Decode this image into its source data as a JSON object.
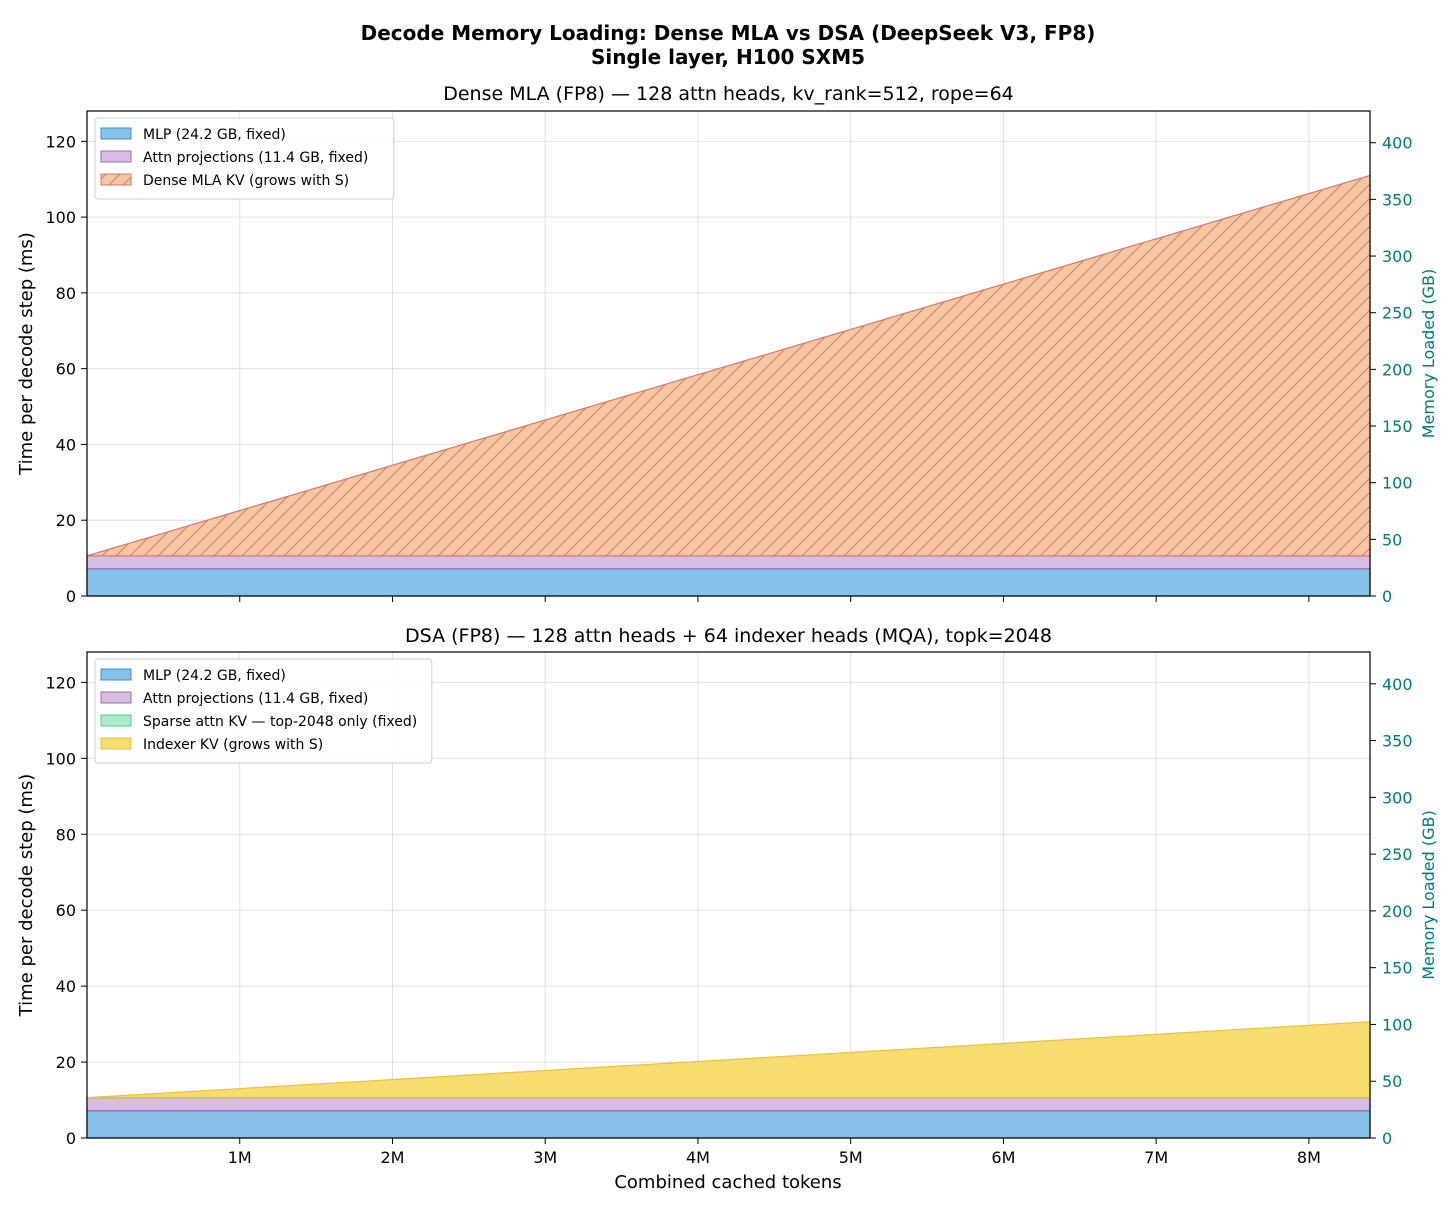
{
  "figure": {
    "title_line1": "Decode Memory Loading: Dense MLA vs DSA (DeepSeek V3, FP8)",
    "title_line2": "Single layer, H100 SXM5",
    "xlabel": "Combined cached tokens"
  },
  "colors": {
    "mlp_fill": "#85c1e9",
    "mlp_edge": "#3b8ed0",
    "attn_fill": "#d7bde2",
    "attn_edge": "#9b6bb3",
    "kv_fill": "#f5c6a2",
    "kv_edge": "#d4786a",
    "sparse_fill": "#abebc6",
    "sparse_edge": "#58c98a",
    "indexer_fill": "#f7dc6f",
    "indexer_edge": "#e6c240",
    "right_axis": "#007a7a",
    "grid": "#e0e0e0"
  },
  "chart_data": [
    {
      "type": "area",
      "title": "Dense MLA (FP8) — 128 attn heads, kv_rank=512, rope=64",
      "xlabel": "",
      "ylabel": "Time per decode step (ms)",
      "ylabel_right": "Memory Loaded (GB)",
      "xlim": [
        0,
        8400000
      ],
      "ylim": [
        0,
        128
      ],
      "ylim_right": [
        0,
        428
      ],
      "x_ticks": [
        1000000,
        2000000,
        3000000,
        4000000,
        5000000,
        6000000,
        7000000,
        8000000
      ],
      "x_tick_labels": [
        "1M",
        "2M",
        "3M",
        "4M",
        "5M",
        "6M",
        "7M",
        "8M"
      ],
      "show_x_tick_labels": false,
      "y_ticks": [
        0,
        20,
        40,
        60,
        80,
        100,
        120
      ],
      "y_tick_labels": [
        "0",
        "20",
        "40",
        "60",
        "80",
        "100",
        "120"
      ],
      "y_ticks_right": [
        0,
        50,
        100,
        150,
        200,
        250,
        300,
        350,
        400
      ],
      "y_tick_labels_right": [
        "0",
        "50",
        "100",
        "150",
        "200",
        "250",
        "300",
        "350",
        "400"
      ],
      "grid": true,
      "legend_position": "top-left",
      "x": [
        0,
        8400000
      ],
      "series": [
        {
          "name": "MLP (24.2 GB, fixed)",
          "values": [
            7.2,
            7.2
          ],
          "fill": "mlp_fill",
          "edge": "mlp_edge",
          "hatch": false
        },
        {
          "name": "Attn projections (11.4 GB, fixed)",
          "values": [
            3.4,
            3.4
          ],
          "fill": "attn_fill",
          "edge": "attn_edge",
          "hatch": false
        },
        {
          "name": "Dense MLA KV (grows with S)",
          "values": [
            0,
            100.4
          ],
          "fill": "kv_fill",
          "edge": "kv_edge",
          "hatch": true
        }
      ]
    },
    {
      "type": "area",
      "title": "DSA (FP8) — 128 attn heads + 64 indexer heads (MQA), topk=2048",
      "xlabel": "Combined cached tokens",
      "ylabel": "Time per decode step (ms)",
      "ylabel_right": "Memory Loaded (GB)",
      "xlim": [
        0,
        8400000
      ],
      "ylim": [
        0,
        128
      ],
      "ylim_right": [
        0,
        428
      ],
      "x_ticks": [
        1000000,
        2000000,
        3000000,
        4000000,
        5000000,
        6000000,
        7000000,
        8000000
      ],
      "x_tick_labels": [
        "1M",
        "2M",
        "3M",
        "4M",
        "5M",
        "6M",
        "7M",
        "8M"
      ],
      "show_x_tick_labels": true,
      "y_ticks": [
        0,
        20,
        40,
        60,
        80,
        100,
        120
      ],
      "y_tick_labels": [
        "0",
        "20",
        "40",
        "60",
        "80",
        "100",
        "120"
      ],
      "y_ticks_right": [
        0,
        50,
        100,
        150,
        200,
        250,
        300,
        350,
        400
      ],
      "y_tick_labels_right": [
        "0",
        "50",
        "100",
        "150",
        "200",
        "250",
        "300",
        "350",
        "400"
      ],
      "grid": true,
      "legend_position": "top-left",
      "x": [
        0,
        8400000
      ],
      "series": [
        {
          "name": "MLP (24.2 GB, fixed)",
          "values": [
            7.2,
            7.2
          ],
          "fill": "mlp_fill",
          "edge": "mlp_edge",
          "hatch": false
        },
        {
          "name": "Attn projections (11.4 GB, fixed)",
          "values": [
            3.4,
            3.4
          ],
          "fill": "attn_fill",
          "edge": "attn_edge",
          "hatch": false
        },
        {
          "name": "Sparse attn KV — top-2048 only (fixed)",
          "values": [
            0.03,
            0.03
          ],
          "fill": "sparse_fill",
          "edge": "sparse_edge",
          "hatch": false
        },
        {
          "name": "Indexer KV (grows with S)",
          "values": [
            0,
            20.0
          ],
          "fill": "indexer_fill",
          "edge": "indexer_edge",
          "hatch": false
        }
      ]
    }
  ]
}
